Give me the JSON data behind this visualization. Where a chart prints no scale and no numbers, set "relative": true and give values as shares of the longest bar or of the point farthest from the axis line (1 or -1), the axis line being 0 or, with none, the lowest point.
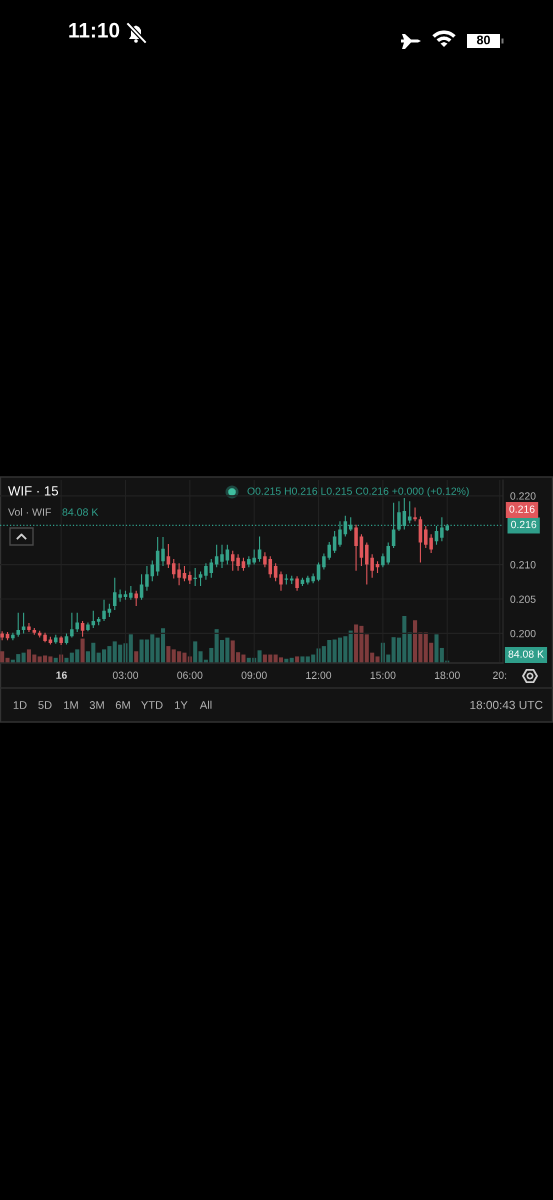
{
  "chart_data": [
    {
      "type": "candlestick",
      "title": "WIF · 15",
      "x": [
        -2.75,
        -2.5,
        -2.25,
        -2,
        -1.75,
        -1.5,
        -1.25,
        -1,
        -0.75,
        -0.5,
        -0.25,
        0,
        0.25,
        0.5,
        0.75,
        1,
        1.25,
        1.5,
        1.75,
        2,
        2.25,
        2.5,
        2.75,
        3,
        3.25,
        3.5,
        3.75,
        4,
        4.25,
        4.5,
        4.75,
        5,
        5.25,
        5.5,
        5.75,
        6,
        6.25,
        6.5,
        6.75,
        7,
        7.25,
        7.5,
        7.75,
        8,
        8.25,
        8.5,
        8.75,
        9,
        9.25,
        9.5,
        9.75,
        10,
        10.25,
        10.5,
        10.75,
        11,
        11.25,
        11.5,
        11.75,
        12,
        12.25,
        12.5,
        12.75,
        13,
        13.25,
        13.5,
        13.75,
        14,
        14.25,
        14.5,
        14.75,
        15,
        15.25,
        15.5,
        15.75,
        16,
        16.25,
        16.5,
        16.75,
        17,
        17.25,
        17.5,
        17.75,
        18
      ],
      "ohlc": [
        [
          0.2,
          0.2003,
          0.199,
          0.1994
        ],
        [
          0.1999,
          0.2002,
          0.199,
          0.1993
        ],
        [
          0.1993,
          0.2001,
          0.199,
          0.1998
        ],
        [
          0.1998,
          0.203,
          0.1995,
          0.2005
        ],
        [
          0.2005,
          0.203,
          0.2,
          0.201
        ],
        [
          0.201,
          0.2015,
          0.2002,
          0.2005
        ],
        [
          0.2005,
          0.2008,
          0.1998,
          0.2001
        ],
        [
          0.2001,
          0.2004,
          0.1994,
          0.1997
        ],
        [
          0.1998,
          0.2001,
          0.1987,
          0.1989
        ],
        [
          0.1991,
          0.1995,
          0.1984,
          0.1986
        ],
        [
          0.1987,
          0.1998,
          0.1985,
          0.1994
        ],
        [
          0.1994,
          0.1996,
          0.1983,
          0.1986
        ],
        [
          0.1986,
          0.2,
          0.1984,
          0.1996
        ],
        [
          0.1996,
          0.203,
          0.1994,
          0.2006
        ],
        [
          0.2006,
          0.203,
          0.2002,
          0.2016
        ],
        [
          0.2015,
          0.2018,
          0.1995,
          0.2004
        ],
        [
          0.2005,
          0.2016,
          0.2003,
          0.2013
        ],
        [
          0.2012,
          0.2033,
          0.2008,
          0.2018
        ],
        [
          0.2017,
          0.2024,
          0.2012,
          0.2021
        ],
        [
          0.2021,
          0.2049,
          0.2018,
          0.2033
        ],
        [
          0.203,
          0.2043,
          0.2024,
          0.2036
        ],
        [
          0.204,
          0.2081,
          0.2034,
          0.206
        ],
        [
          0.2052,
          0.2064,
          0.2046,
          0.2057
        ],
        [
          0.2053,
          0.2062,
          0.2049,
          0.2057
        ],
        [
          0.2052,
          0.2069,
          0.2049,
          0.2059
        ],
        [
          0.2058,
          0.2062,
          0.204,
          0.2051
        ],
        [
          0.2052,
          0.2086,
          0.2049,
          0.2071
        ],
        [
          0.2068,
          0.2098,
          0.2062,
          0.2086
        ],
        [
          0.2083,
          0.2106,
          0.2076,
          0.21
        ],
        [
          0.209,
          0.214,
          0.2084,
          0.212
        ],
        [
          0.2105,
          0.214,
          0.2098,
          0.2123
        ],
        [
          0.2112,
          0.213,
          0.2095,
          0.21
        ],
        [
          0.2102,
          0.2108,
          0.208,
          0.2086
        ],
        [
          0.2093,
          0.2102,
          0.207,
          0.2081
        ],
        [
          0.2088,
          0.2098,
          0.2076,
          0.208
        ],
        [
          0.2085,
          0.209,
          0.2072,
          0.2077
        ],
        [
          0.2079,
          0.2095,
          0.2069,
          0.2081
        ],
        [
          0.2081,
          0.209,
          0.2069,
          0.2086
        ],
        [
          0.2084,
          0.2102,
          0.2078,
          0.2098
        ],
        [
          0.2088,
          0.2108,
          0.2081,
          0.2103
        ],
        [
          0.21,
          0.2129,
          0.2096,
          0.2112
        ],
        [
          0.2104,
          0.2129,
          0.2095,
          0.2115
        ],
        [
          0.2106,
          0.2129,
          0.21,
          0.2122
        ],
        [
          0.2115,
          0.212,
          0.2091,
          0.2105
        ],
        [
          0.211,
          0.2115,
          0.2091,
          0.2098
        ],
        [
          0.2105,
          0.211,
          0.2091,
          0.2095
        ],
        [
          0.21,
          0.2112,
          0.2096,
          0.2108
        ],
        [
          0.2103,
          0.2122,
          0.21,
          0.211
        ],
        [
          0.2108,
          0.2141,
          0.2104,
          0.2122
        ],
        [
          0.2112,
          0.2118,
          0.2096,
          0.21
        ],
        [
          0.2108,
          0.2112,
          0.2081,
          0.2086
        ],
        [
          0.2098,
          0.2102,
          0.2076,
          0.2081
        ],
        [
          0.2086,
          0.209,
          0.2062,
          0.2071
        ],
        [
          0.2078,
          0.2086,
          0.2071,
          0.208
        ],
        [
          0.2077,
          0.2084,
          0.2072,
          0.208
        ],
        [
          0.208,
          0.2083,
          0.2062,
          0.2066
        ],
        [
          0.2072,
          0.2081,
          0.2069,
          0.2078
        ],
        [
          0.2074,
          0.2084,
          0.2071,
          0.2081
        ],
        [
          0.2076,
          0.2087,
          0.2073,
          0.2083
        ],
        [
          0.2078,
          0.2103,
          0.2076,
          0.21
        ],
        [
          0.2096,
          0.2116,
          0.2093,
          0.2112
        ],
        [
          0.211,
          0.2133,
          0.2107,
          0.2129
        ],
        [
          0.212,
          0.2149,
          0.2117,
          0.2141
        ],
        [
          0.2129,
          0.2163,
          0.2126,
          0.2151
        ],
        [
          0.2144,
          0.2171,
          0.2141,
          0.2163
        ],
        [
          0.2151,
          0.2169,
          0.2149,
          0.2158
        ],
        [
          0.2154,
          0.2158,
          0.2091,
          0.2127
        ],
        [
          0.2141,
          0.2144,
          0.2098,
          0.211
        ],
        [
          0.2129,
          0.2132,
          0.2071,
          0.21
        ],
        [
          0.211,
          0.2115,
          0.2081,
          0.2091
        ],
        [
          0.2101,
          0.2105,
          0.2088,
          0.2096
        ],
        [
          0.2099,
          0.2116,
          0.2096,
          0.2112
        ],
        [
          0.2103,
          0.2132,
          0.21,
          0.2127
        ],
        [
          0.2127,
          0.219,
          0.2124,
          0.2151
        ],
        [
          0.2151,
          0.2192,
          0.2149,
          0.2176
        ],
        [
          0.2156,
          0.2197,
          0.2151,
          0.2178
        ],
        [
          0.2164,
          0.2192,
          0.216,
          0.217
        ],
        [
          0.2169,
          0.2183,
          0.2163,
          0.2166
        ],
        [
          0.2166,
          0.217,
          0.2103,
          0.2132
        ],
        [
          0.2151,
          0.2156,
          0.2124,
          0.2129
        ],
        [
          0.2139,
          0.2144,
          0.2117,
          0.2122
        ],
        [
          0.2134,
          0.2156,
          0.2129,
          0.2149
        ],
        [
          0.2139,
          0.2169,
          0.2134,
          0.2154
        ],
        [
          0.215,
          0.2159,
          0.2149,
          0.2157
        ]
      ],
      "colors": [
        "#e0575b",
        "#e0575b",
        "#35a38a",
        "#35a38a",
        "#35a38a",
        "#e0575b",
        "#e0575b",
        "#e0575b",
        "#e0575b",
        "#e0575b",
        "#35a38a",
        "#e0575b",
        "#35a38a",
        "#35a38a",
        "#35a38a",
        "#e0575b",
        "#35a38a",
        "#35a38a",
        "#35a38a",
        "#35a38a",
        "#35a38a",
        "#35a38a",
        "#35a38a",
        "#35a38a",
        "#35a38a",
        "#e0575b",
        "#35a38a",
        "#35a38a",
        "#35a38a",
        "#35a38a",
        "#35a38a",
        "#e0575b",
        "#e0575b",
        "#e0575b",
        "#e0575b",
        "#e0575b",
        "#35a38a",
        "#35a38a",
        "#35a38a",
        "#35a38a",
        "#35a38a",
        "#35a38a",
        "#35a38a",
        "#e0575b",
        "#e0575b",
        "#e0575b",
        "#35a38a",
        "#35a38a",
        "#35a38a",
        "#e0575b",
        "#e0575b",
        "#e0575b",
        "#e0575b",
        "#35a38a",
        "#35a38a",
        "#e0575b",
        "#35a38a",
        "#35a38a",
        "#35a38a",
        "#35a38a",
        "#35a38a",
        "#35a38a",
        "#35a38a",
        "#35a38a",
        "#35a38a",
        "#35a38a",
        "#e0575b",
        "#e0575b",
        "#e0575b",
        "#e0575b",
        "#e0575b",
        "#35a38a",
        "#35a38a",
        "#35a38a",
        "#35a38a",
        "#35a38a",
        "#35a38a",
        "#e0575b",
        "#e0575b",
        "#e0575b",
        "#e0575b",
        "#35a38a",
        "#35a38a",
        "#35a38a"
      ],
      "xlim": [
        -2.85,
        20.6
      ],
      "ylim": [
        0.1957,
        0.2223
      ],
      "xticks": [
        {
          "value": 0,
          "label": null
        },
        {
          "value": 3,
          "label": "03:00"
        },
        {
          "value": 6,
          "label": "06:00"
        },
        {
          "value": 9,
          "label": "09:00"
        },
        {
          "value": 12,
          "label": "12:00"
        },
        {
          "value": 15,
          "label": "15:00"
        },
        {
          "value": 18,
          "label": "18:00"
        },
        {
          "value": 20.45,
          "label": "20:"
        }
      ],
      "yticks": [
        {
          "value": 0.2,
          "label": "0.200"
        },
        {
          "value": 0.205,
          "label": "0.205"
        },
        {
          "value": 0.21,
          "label": "0.210"
        },
        {
          "value": 0.22,
          "label": "0.220"
        }
      ],
      "grid": true,
      "ref_lines": [
        {
          "axis": "y",
          "value": 0.2157,
          "label": "0.216",
          "color": "#2f9e8a",
          "line_style": "dotted"
        }
      ],
      "annotations": [
        "O0.215 H0.216 L0.215 C0.216 +0.000 (+0.12%)",
        "0.216",
        "1D",
        "5D",
        "1M",
        "3M",
        "6M",
        "YTD",
        "1Y",
        "All",
        "18:00:43 UTC",
        "11:10",
        "80",
        "16"
      ]
    },
    {
      "type": "bar",
      "title": "Vol · WIF",
      "relative": true,
      "x": [
        -2.75,
        -2.5,
        -2.25,
        -2,
        -1.75,
        -1.5,
        -1.25,
        -1,
        -0.75,
        -0.5,
        -0.25,
        0,
        0.25,
        0.5,
        0.75,
        1,
        1.25,
        1.5,
        1.75,
        2,
        2.25,
        2.5,
        2.75,
        3,
        3.25,
        3.5,
        3.75,
        4,
        4.25,
        4.5,
        4.75,
        5,
        5.25,
        5.5,
        5.75,
        6,
        6.25,
        6.5,
        6.75,
        7,
        7.25,
        7.5,
        7.75,
        8,
        8.25,
        8.5,
        8.75,
        9,
        9.25,
        9.5,
        9.75,
        10,
        10.25,
        10.5,
        10.75,
        11,
        11.25,
        11.5,
        11.75,
        12,
        12.25,
        12.5,
        12.75,
        13,
        13.25,
        13.5,
        13.75,
        14,
        14.25,
        14.5,
        14.75,
        15,
        15.25,
        15.5,
        15.75,
        16,
        16.25,
        16.5,
        16.75,
        17,
        17.25,
        17.5,
        17.75,
        18
      ],
      "values": [
        0.25,
        0.11,
        0.07,
        0.19,
        0.22,
        0.29,
        0.18,
        0.14,
        0.16,
        0.14,
        0.11,
        0.18,
        0.11,
        0.22,
        0.29,
        0.52,
        0.25,
        0.43,
        0.22,
        0.29,
        0.36,
        0.46,
        0.39,
        0.42,
        0.61,
        0.25,
        0.5,
        0.5,
        0.61,
        0.54,
        0.74,
        0.36,
        0.29,
        0.25,
        0.22,
        0.14,
        0.46,
        0.25,
        0.07,
        0.32,
        0.72,
        0.49,
        0.54,
        0.48,
        0.23,
        0.18,
        0.11,
        0.11,
        0.27,
        0.18,
        0.18,
        0.18,
        0.12,
        0.09,
        0.11,
        0.14,
        0.14,
        0.14,
        0.18,
        0.31,
        0.36,
        0.49,
        0.5,
        0.54,
        0.57,
        0.69,
        0.82,
        0.79,
        0.61,
        0.22,
        0.14,
        0.43,
        0.18,
        0.55,
        0.54,
        1,
        0.65,
        0.91,
        0.65,
        0.65,
        0.43,
        0.61,
        0.32,
        0.05
      ],
      "colors": [
        "#7d3b3c",
        "#7d3b3c",
        "#27665d",
        "#27665d",
        "#27665d",
        "#7d3b3c",
        "#7d3b3c",
        "#7d3b3c",
        "#7d3b3c",
        "#7d3b3c",
        "#27665d",
        "#7d3b3c",
        "#27665d",
        "#27665d",
        "#27665d",
        "#7d3b3c",
        "#27665d",
        "#27665d",
        "#27665d",
        "#27665d",
        "#27665d",
        "#27665d",
        "#27665d",
        "#27665d",
        "#27665d",
        "#7d3b3c",
        "#27665d",
        "#27665d",
        "#27665d",
        "#27665d",
        "#27665d",
        "#7d3b3c",
        "#7d3b3c",
        "#7d3b3c",
        "#7d3b3c",
        "#7d3b3c",
        "#27665d",
        "#27665d",
        "#27665d",
        "#27665d",
        "#27665d",
        "#27665d",
        "#27665d",
        "#7d3b3c",
        "#7d3b3c",
        "#7d3b3c",
        "#27665d",
        "#27665d",
        "#27665d",
        "#7d3b3c",
        "#7d3b3c",
        "#7d3b3c",
        "#7d3b3c",
        "#27665d",
        "#27665d",
        "#7d3b3c",
        "#27665d",
        "#27665d",
        "#27665d",
        "#27665d",
        "#27665d",
        "#27665d",
        "#27665d",
        "#27665d",
        "#27665d",
        "#27665d",
        "#7d3b3c",
        "#7d3b3c",
        "#7d3b3c",
        "#7d3b3c",
        "#7d3b3c",
        "#27665d",
        "#27665d",
        "#27665d",
        "#27665d",
        "#27665d",
        "#27665d",
        "#7d3b3c",
        "#7d3b3c",
        "#7d3b3c",
        "#7d3b3c",
        "#27665d",
        "#27665d",
        "#27665d"
      ],
      "xlim": [
        -2.85,
        20.6
      ],
      "annotations": [
        "84.08 K",
        "84.08 K"
      ]
    }
  ]
}
